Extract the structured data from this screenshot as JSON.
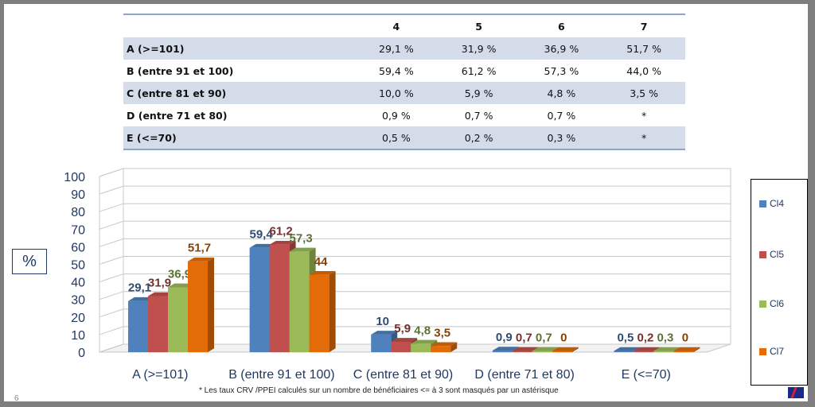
{
  "table": {
    "columns": [
      "4",
      "5",
      "6",
      "7"
    ],
    "rows": [
      {
        "label": "A (>=101)",
        "values": [
          "29,1 %",
          "31,9 %",
          "36,9 %",
          "51,7 %"
        ]
      },
      {
        "label": "B (entre 91 et 100)",
        "values": [
          "59,4 %",
          "61,2 %",
          "57,3 %",
          "44,0 %"
        ]
      },
      {
        "label": "C (entre 81 et 90)",
        "values": [
          "10,0 %",
          "5,9 %",
          "4,8 %",
          "3,5 %"
        ]
      },
      {
        "label": "D (entre 71 et 80)",
        "values": [
          "0,9 %",
          "0,7 %",
          "0,7 %",
          "*"
        ]
      },
      {
        "label": "E (<=70)",
        "values": [
          "0,5 %",
          "0,2 %",
          "0,3 %",
          "*"
        ]
      }
    ]
  },
  "unit_label": "%",
  "footnote": "* Les taux CRV /PPEI  calculés sur un nombre de bénéficiaires  <= à 3 sont masqués par un astérisque",
  "page_number": "6",
  "chart_data": {
    "type": "bar",
    "categories": [
      "A (>=101)",
      "B (entre 91 et 100)",
      "C (entre 81 et 90)",
      "D (entre 71 et 80)",
      "E (<=70)"
    ],
    "series": [
      {
        "name": "Cl4",
        "color": "#4f81bd",
        "values": [
          29.1,
          59.4,
          10,
          0.9,
          0.5
        ],
        "labels": [
          "29,1",
          "59,4",
          "10",
          "0,9",
          "0,5"
        ]
      },
      {
        "name": "Cl5",
        "color": "#c0504d",
        "values": [
          31.9,
          61.2,
          5.9,
          0.7,
          0.2
        ],
        "labels": [
          "31,9",
          "61,2",
          "5,9",
          "0,7",
          "0,2"
        ]
      },
      {
        "name": "Cl6",
        "color": "#9bbb59",
        "values": [
          36.9,
          57.3,
          4.8,
          0.7,
          0.3
        ],
        "labels": [
          "36,9",
          "57,3",
          "4,8",
          "0,7",
          "0,3"
        ]
      },
      {
        "name": "Cl7",
        "color": "#e36c09",
        "values": [
          51.7,
          44,
          3.5,
          0,
          0
        ],
        "labels": [
          "51,7",
          "44",
          "3,5",
          "0",
          "0"
        ]
      }
    ],
    "yticks": [
      "0",
      "10",
      "20",
      "30",
      "40",
      "50",
      "60",
      "70",
      "80",
      "90",
      "100"
    ],
    "ylim": [
      0,
      100
    ],
    "grid": true,
    "legend_position": "right"
  }
}
